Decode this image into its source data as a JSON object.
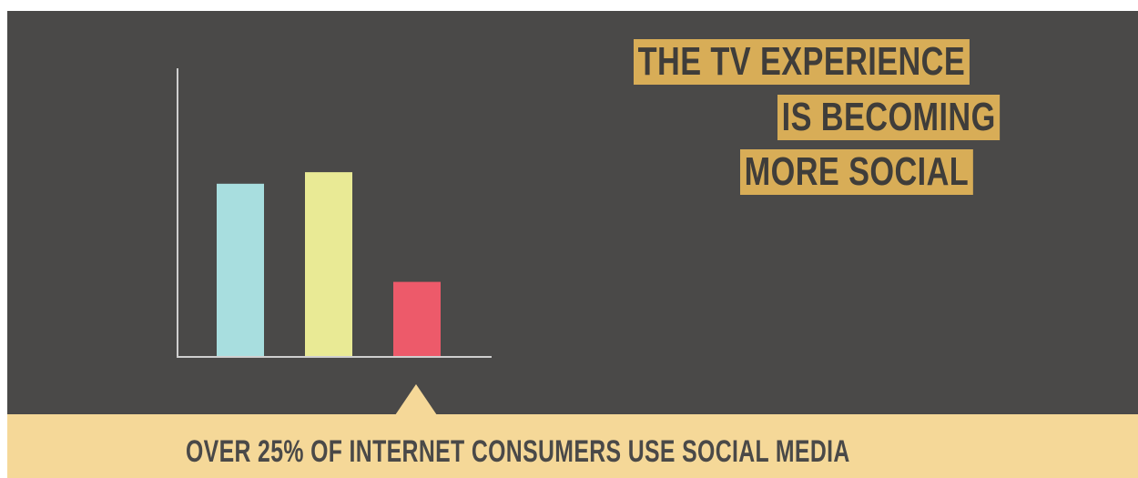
{
  "chart_data": {
    "type": "bar",
    "title": "",
    "xlabel": "",
    "ylabel": "",
    "categories": [
      "",
      "",
      ""
    ],
    "values": [
      60,
      64,
      26
    ],
    "ylim": [
      0,
      100
    ],
    "colors": [
      "#a8dedf",
      "#e9ea95",
      "#ed5a6a"
    ],
    "grid": false,
    "axis_color": "#cfcfcf"
  },
  "headline": {
    "line_1": "THE TV EXPERIENCE",
    "line_2": "IS BECOMING",
    "line_3": "MORE SOCIAL",
    "highlight_color": "#d8ad57"
  },
  "callout": {
    "text": "OVER 25% OF INTERNET CONSUMERS USE SOCIAL MEDIA",
    "background_color": "#f5d898"
  },
  "background_color": "#4a4948"
}
